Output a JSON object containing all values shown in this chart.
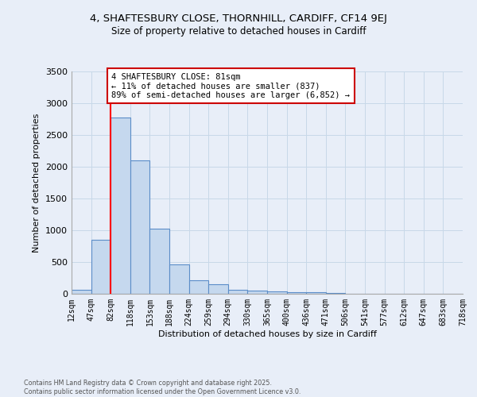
{
  "title_line1": "4, SHAFTESBURY CLOSE, THORNHILL, CARDIFF, CF14 9EJ",
  "title_line2": "Size of property relative to detached houses in Cardiff",
  "xlabel": "Distribution of detached houses by size in Cardiff",
  "ylabel": "Number of detached properties",
  "bar_values": [
    60,
    850,
    2780,
    2100,
    1030,
    460,
    215,
    150,
    65,
    55,
    40,
    30,
    20,
    10,
    5,
    3,
    3,
    2,
    2,
    2
  ],
  "x_labels": [
    "12sqm",
    "47sqm",
    "82sqm",
    "118sqm",
    "153sqm",
    "188sqm",
    "224sqm",
    "259sqm",
    "294sqm",
    "330sqm",
    "365sqm",
    "400sqm",
    "436sqm",
    "471sqm",
    "506sqm",
    "541sqm",
    "577sqm",
    "612sqm",
    "647sqm",
    "683sqm",
    "718sqm"
  ],
  "bar_color": "#c5d8ee",
  "bar_edge_color": "#5b8dc8",
  "grid_color": "#c8d8e8",
  "background_color": "#e8eef8",
  "red_line_index": 2,
  "annotation_line1": "4 SHAFTESBURY CLOSE: 81sqm",
  "annotation_line2": "← 11% of detached houses are smaller (837)",
  "annotation_line3": "89% of semi-detached houses are larger (6,852) →",
  "annotation_box_facecolor": "#ffffff",
  "annotation_box_edgecolor": "#cc0000",
  "ylim": [
    0,
    3500
  ],
  "yticks": [
    0,
    500,
    1000,
    1500,
    2000,
    2500,
    3000,
    3500
  ],
  "footnote": "Contains HM Land Registry data © Crown copyright and database right 2025.\nContains public sector information licensed under the Open Government Licence v3.0."
}
